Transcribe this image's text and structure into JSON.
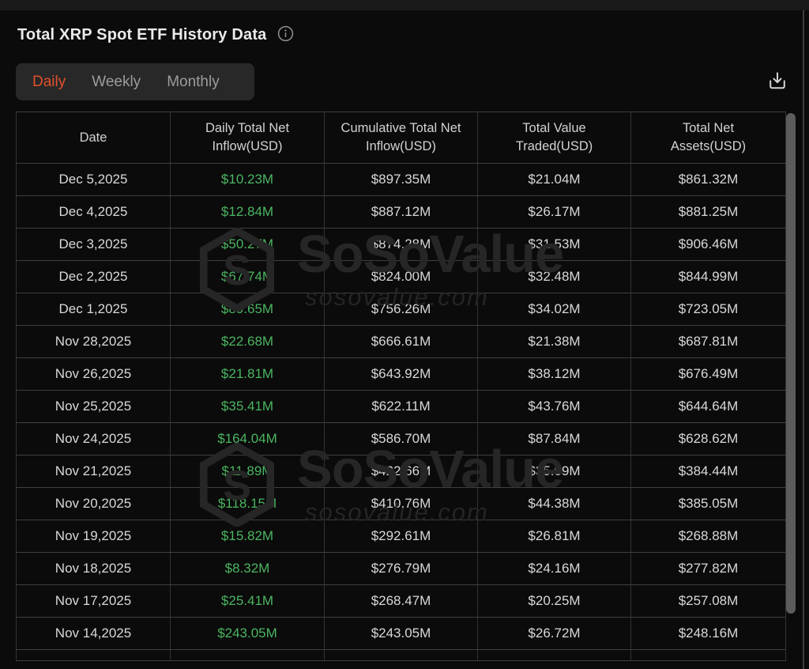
{
  "page": {
    "title": "Total XRP Spot ETF History Data"
  },
  "tabs": {
    "items": [
      {
        "label": "Daily",
        "active": true
      },
      {
        "label": "Weekly",
        "active": false
      },
      {
        "label": "Monthly",
        "active": false
      }
    ]
  },
  "colors": {
    "active_tab_accent": "#e1512d",
    "inflow_green": "#4bb561"
  },
  "watermark": {
    "brand": "SoSoValue",
    "domain": "sosovalue.com",
    "logo_letter": "S"
  },
  "table": {
    "columns": [
      "Date",
      "Daily Total Net Inflow(USD)",
      "Cumulative Total Net Inflow(USD)",
      "Total Value Traded(USD)",
      "Total Net Assets(USD)"
    ],
    "rows": [
      [
        "Dec 5,2025",
        "$10.23M",
        "$897.35M",
        "$21.04M",
        "$861.32M"
      ],
      [
        "Dec 4,2025",
        "$12.84M",
        "$887.12M",
        "$26.17M",
        "$881.25M"
      ],
      [
        "Dec 3,2025",
        "$50.27M",
        "$874.28M",
        "$31.53M",
        "$906.46M"
      ],
      [
        "Dec 2,2025",
        "$67.74M",
        "$824.00M",
        "$32.48M",
        "$844.99M"
      ],
      [
        "Dec 1,2025",
        "$89.65M",
        "$756.26M",
        "$34.02M",
        "$723.05M"
      ],
      [
        "Nov 28,2025",
        "$22.68M",
        "$666.61M",
        "$21.38M",
        "$687.81M"
      ],
      [
        "Nov 26,2025",
        "$21.81M",
        "$643.92M",
        "$38.12M",
        "$676.49M"
      ],
      [
        "Nov 25,2025",
        "$35.41M",
        "$622.11M",
        "$43.76M",
        "$644.64M"
      ],
      [
        "Nov 24,2025",
        "$164.04M",
        "$586.70M",
        "$87.84M",
        "$628.62M"
      ],
      [
        "Nov 21,2025",
        "$11.89M",
        "$422.66M",
        "$35.09M",
        "$384.44M"
      ],
      [
        "Nov 20,2025",
        "$118.15M",
        "$410.76M",
        "$44.38M",
        "$385.05M"
      ],
      [
        "Nov 19,2025",
        "$15.82M",
        "$292.61M",
        "$26.81M",
        "$268.88M"
      ],
      [
        "Nov 18,2025",
        "$8.32M",
        "$276.79M",
        "$24.16M",
        "$277.82M"
      ],
      [
        "Nov 17,2025",
        "$25.41M",
        "$268.47M",
        "$20.25M",
        "$257.08M"
      ],
      [
        "Nov 14,2025",
        "$243.05M",
        "$243.05M",
        "$26.72M",
        "$248.16M"
      ]
    ]
  }
}
